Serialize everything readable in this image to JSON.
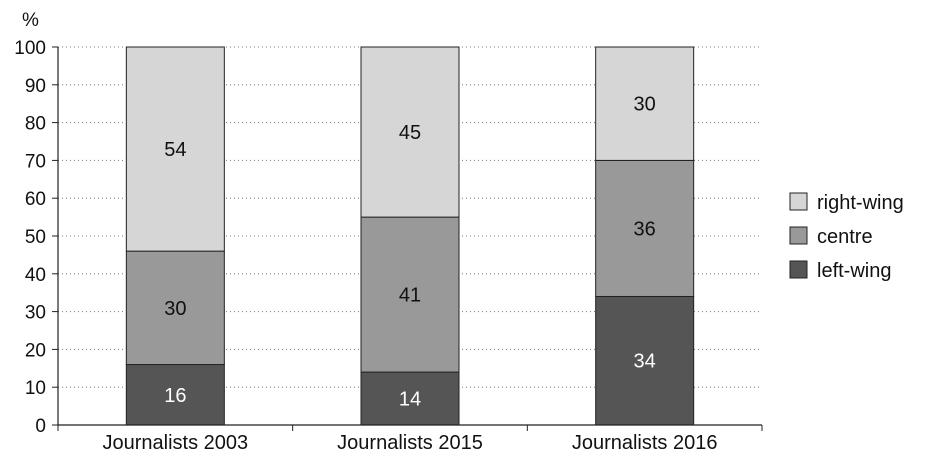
{
  "chart_data": {
    "type": "bar",
    "stacked": true,
    "unit_label": "%",
    "categories": [
      "Journalists 2003",
      "Journalists 2015",
      "Journalists 2016"
    ],
    "series": [
      {
        "name": "left-wing",
        "values": [
          16,
          14,
          34
        ],
        "color": "#555555",
        "label_color": "#ffffff"
      },
      {
        "name": "centre",
        "values": [
          30,
          41,
          36
        ],
        "color": "#999999",
        "label_color": "#111111"
      },
      {
        "name": "right-wing",
        "values": [
          54,
          45,
          30
        ],
        "color": "#d6d6d6",
        "label_color": "#111111"
      }
    ],
    "ylim": [
      0,
      100
    ],
    "yticks": [
      0,
      10,
      20,
      30,
      40,
      50,
      60,
      70,
      80,
      90,
      100
    ],
    "grid": "horizontal dotted",
    "legend_position": "right",
    "legend_order": [
      "right-wing",
      "centre",
      "left-wing"
    ]
  }
}
